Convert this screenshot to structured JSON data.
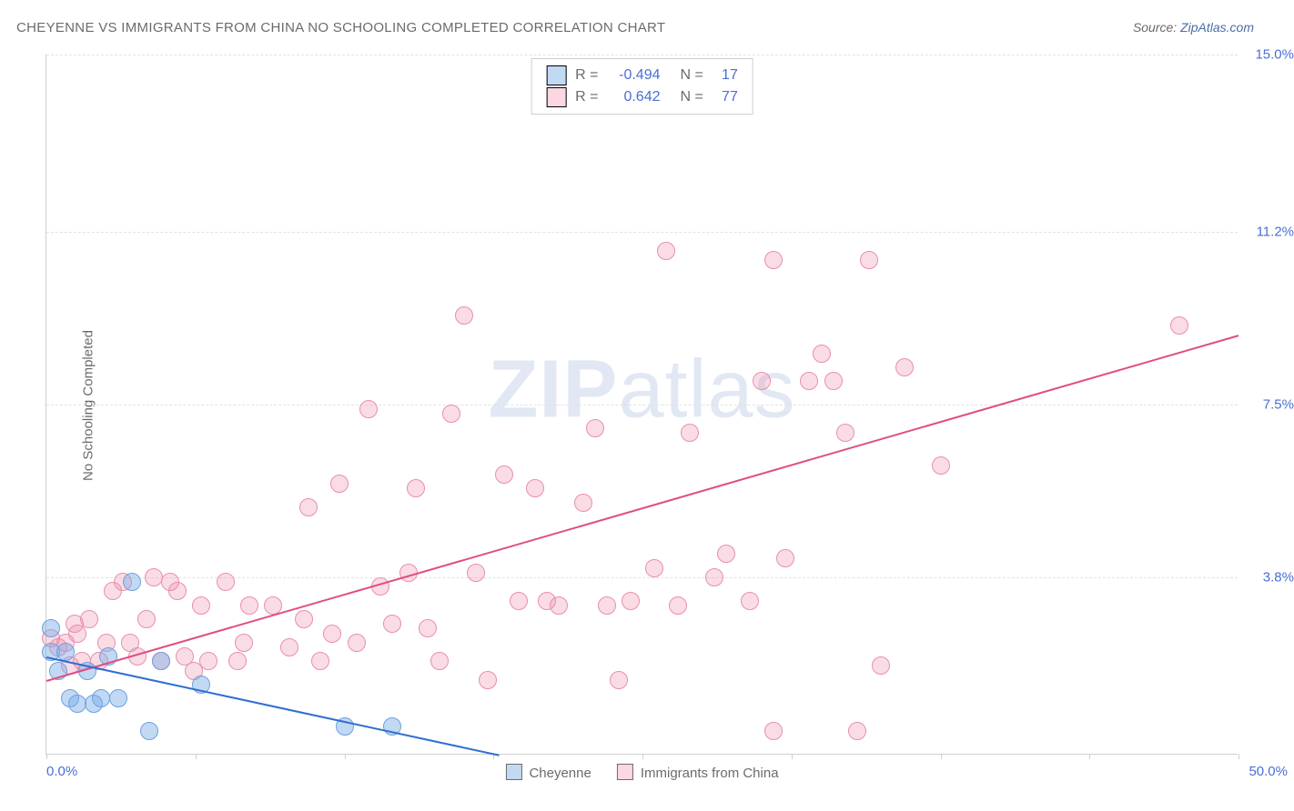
{
  "title": "CHEYENNE VS IMMIGRANTS FROM CHINA NO SCHOOLING COMPLETED CORRELATION CHART",
  "source_label": "Source: ",
  "source_site": "ZipAtlas.com",
  "ylabel": "No Schooling Completed",
  "watermark_a": "ZIP",
  "watermark_b": "atlas",
  "chart": {
    "type": "scatter",
    "xlim": [
      0,
      50
    ],
    "ylim": [
      0,
      15
    ],
    "yticks": [
      {
        "v": 3.8,
        "label": "3.8%"
      },
      {
        "v": 7.5,
        "label": "7.5%"
      },
      {
        "v": 11.2,
        "label": "11.2%"
      },
      {
        "v": 15.0,
        "label": "15.0%"
      }
    ],
    "xtick_positions": [
      0,
      6.25,
      12.5,
      18.75,
      25,
      31.25,
      37.5,
      43.75,
      50
    ],
    "xtick_start": "0.0%",
    "xtick_end": "50.0%",
    "background_color": "#ffffff",
    "grid_color": "#e2e2e2",
    "axis_color": "#cfcfcf",
    "tick_label_color": "#4a6fd4",
    "marker_size": 20,
    "series": {
      "cheyenne": {
        "label": "Cheyenne",
        "fill": "rgba(120,170,230,0.45)",
        "stroke": "#6fa0de",
        "line_color": "#2f6fd0",
        "r_label": "R = ",
        "r_value": "-0.494",
        "n_label": "N = ",
        "n_value": "17",
        "regression": {
          "x1": 0,
          "y1": 2.1,
          "x2": 19,
          "y2": 0
        },
        "points": [
          [
            0.2,
            2.7
          ],
          [
            0.2,
            2.2
          ],
          [
            0.5,
            1.8
          ],
          [
            0.8,
            2.2
          ],
          [
            1.0,
            1.2
          ],
          [
            1.3,
            1.1
          ],
          [
            1.7,
            1.8
          ],
          [
            2.0,
            1.1
          ],
          [
            2.3,
            1.2
          ],
          [
            2.6,
            2.1
          ],
          [
            3.0,
            1.2
          ],
          [
            3.6,
            3.7
          ],
          [
            4.3,
            0.5
          ],
          [
            6.5,
            1.5
          ],
          [
            12.5,
            0.6
          ],
          [
            14.5,
            0.6
          ],
          [
            4.8,
            2.0
          ]
        ]
      },
      "china": {
        "label": "Immigrants from China",
        "fill": "rgba(240,140,170,0.30)",
        "stroke": "#e88fae",
        "line_color": "#e04d82",
        "r_label": "R = ",
        "r_value": "0.642",
        "n_label": "N = ",
        "n_value": "77",
        "regression": {
          "x1": 0,
          "y1": 1.6,
          "x2": 50,
          "y2": 9.0
        },
        "points": [
          [
            0.2,
            2.5
          ],
          [
            0.5,
            2.3
          ],
          [
            0.8,
            2.4
          ],
          [
            1.0,
            1.9
          ],
          [
            1.3,
            2.6
          ],
          [
            1.5,
            2.0
          ],
          [
            1.8,
            2.9
          ],
          [
            2.2,
            2.0
          ],
          [
            2.5,
            2.4
          ],
          [
            2.8,
            3.5
          ],
          [
            3.2,
            3.7
          ],
          [
            3.5,
            2.4
          ],
          [
            3.8,
            2.1
          ],
          [
            4.2,
            2.9
          ],
          [
            4.8,
            2.0
          ],
          [
            4.5,
            3.8
          ],
          [
            5.2,
            3.7
          ],
          [
            5.8,
            2.1
          ],
          [
            5.5,
            3.5
          ],
          [
            6.2,
            1.8
          ],
          [
            6.5,
            3.2
          ],
          [
            6.8,
            2.0
          ],
          [
            7.5,
            3.7
          ],
          [
            8.0,
            2.0
          ],
          [
            8.3,
            2.4
          ],
          [
            8.5,
            3.2
          ],
          [
            9.5,
            3.2
          ],
          [
            10.2,
            2.3
          ],
          [
            10.8,
            2.9
          ],
          [
            11.0,
            5.3
          ],
          [
            11.5,
            2.0
          ],
          [
            12.0,
            2.6
          ],
          [
            12.3,
            5.8
          ],
          [
            13.0,
            2.4
          ],
          [
            13.5,
            7.4
          ],
          [
            14.0,
            3.6
          ],
          [
            14.5,
            2.8
          ],
          [
            15.2,
            3.9
          ],
          [
            15.5,
            5.7
          ],
          [
            16.0,
            2.7
          ],
          [
            16.5,
            2.0
          ],
          [
            17.0,
            7.3
          ],
          [
            17.5,
            9.4
          ],
          [
            18.5,
            1.6
          ],
          [
            18.0,
            3.9
          ],
          [
            19.2,
            6.0
          ],
          [
            19.8,
            3.3
          ],
          [
            20.5,
            5.7
          ],
          [
            21.0,
            3.3
          ],
          [
            21.5,
            3.2
          ],
          [
            22.5,
            5.4
          ],
          [
            23.0,
            7.0
          ],
          [
            23.5,
            3.2
          ],
          [
            24.0,
            1.6
          ],
          [
            24.5,
            3.3
          ],
          [
            25.5,
            4.0
          ],
          [
            26.0,
            10.8
          ],
          [
            26.5,
            3.2
          ],
          [
            27.0,
            6.9
          ],
          [
            28.0,
            3.8
          ],
          [
            28.5,
            4.3
          ],
          [
            29.5,
            3.3
          ],
          [
            30.0,
            8.0
          ],
          [
            30.5,
            10.6
          ],
          [
            31.0,
            4.2
          ],
          [
            32.0,
            8.0
          ],
          [
            32.5,
            8.6
          ],
          [
            33.0,
            8.0
          ],
          [
            33.5,
            6.9
          ],
          [
            34.5,
            10.6
          ],
          [
            35.0,
            1.9
          ],
          [
            34.0,
            0.5
          ],
          [
            36.0,
            8.3
          ],
          [
            37.5,
            6.2
          ],
          [
            47.5,
            9.2
          ],
          [
            30.5,
            0.5
          ],
          [
            1.2,
            2.8
          ]
        ]
      }
    }
  }
}
